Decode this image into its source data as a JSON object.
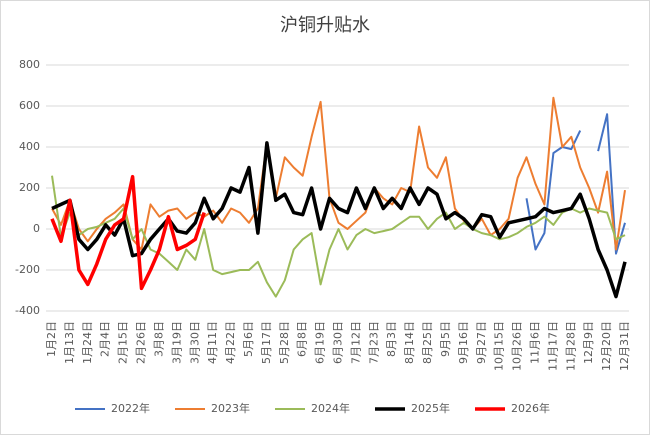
{
  "chart_data": {
    "type": "line",
    "title": "沪铜升贴水",
    "categories": [
      "1月2日",
      null,
      "1月13日",
      null,
      "1月24日",
      null,
      "2月4日",
      null,
      "2月15日",
      null,
      "2月26日",
      null,
      "3月8日",
      null,
      "3月19日",
      null,
      "3月30日",
      null,
      "4月11日",
      null,
      "4月22日",
      null,
      "5月6日",
      null,
      "5月17日",
      null,
      "5月28日",
      null,
      "6月8日",
      null,
      "6月19日",
      null,
      "6月30日",
      null,
      "7月12日",
      null,
      "7月23日",
      null,
      "8月3日",
      null,
      "8月14日",
      null,
      "8月25日",
      null,
      "9月5日",
      null,
      "9月16日",
      null,
      "9月27日",
      null,
      "10月15日",
      null,
      "10月26日",
      null,
      "11月6日",
      null,
      "11月17日",
      null,
      "11月28日",
      null,
      "12月9日",
      null,
      "12月20日",
      null,
      "12月31日"
    ],
    "series": [
      {
        "name": "2022年",
        "color": "#4472c4",
        "width": 2,
        "values": [
          null,
          null,
          null,
          null,
          null,
          null,
          null,
          null,
          null,
          null,
          null,
          null,
          null,
          null,
          null,
          null,
          null,
          null,
          null,
          null,
          null,
          null,
          null,
          null,
          null,
          null,
          null,
          null,
          null,
          null,
          null,
          null,
          null,
          null,
          null,
          null,
          null,
          null,
          null,
          null,
          null,
          null,
          null,
          null,
          null,
          null,
          null,
          null,
          null,
          null,
          null,
          null,
          null,
          150,
          -100,
          -20,
          370,
          400,
          390,
          480,
          null,
          380,
          560,
          -120,
          30
        ]
      },
      {
        "name": "2023年",
        "color": "#ed7d31",
        "width": 2,
        "values": [
          100,
          20,
          140,
          0,
          -60,
          0,
          50,
          80,
          120,
          -50,
          -100,
          120,
          60,
          90,
          100,
          50,
          80,
          60,
          90,
          30,
          100,
          80,
          30,
          100,
          420,
          150,
          350,
          300,
          260,
          450,
          620,
          150,
          30,
          0,
          40,
          80,
          200,
          150,
          120,
          200,
          180,
          500,
          300,
          250,
          350,
          100,
          40,
          0,
          50,
          -30,
          0,
          50,
          250,
          350,
          220,
          120,
          640,
          400,
          450,
          300,
          200,
          80,
          280,
          -100,
          190
        ]
      },
      {
        "name": "2024年",
        "color": "#9bbb59",
        "width": 2,
        "values": [
          260,
          -40,
          80,
          -30,
          0,
          10,
          30,
          50,
          100,
          -50,
          0,
          -100,
          -120,
          -160,
          -200,
          -100,
          -150,
          0,
          -200,
          -220,
          -210,
          -200,
          -200,
          -160,
          -260,
          -330,
          -250,
          -100,
          -50,
          -20,
          -270,
          -100,
          0,
          -100,
          -30,
          0,
          -20,
          -10,
          0,
          30,
          60,
          60,
          0,
          50,
          80,
          0,
          30,
          0,
          -20,
          -30,
          -50,
          -40,
          -20,
          10,
          30,
          60,
          20,
          80,
          100,
          80,
          100,
          90,
          80,
          -50,
          -30
        ]
      },
      {
        "name": "2025年",
        "color": "#000000",
        "width": 3.5,
        "values": [
          100,
          120,
          140,
          -50,
          -100,
          -50,
          20,
          -30,
          50,
          -130,
          -120,
          -50,
          0,
          50,
          -10,
          -20,
          30,
          150,
          50,
          100,
          200,
          180,
          300,
          -20,
          420,
          140,
          170,
          80,
          70,
          200,
          0,
          150,
          100,
          80,
          200,
          100,
          200,
          100,
          150,
          100,
          200,
          120,
          200,
          170,
          50,
          80,
          50,
          0,
          70,
          60,
          -40,
          30,
          40,
          50,
          60,
          100,
          80,
          90,
          100,
          170,
          50,
          -100,
          -200,
          -330,
          -160
        ]
      },
      {
        "name": "2026年",
        "color": "#ff0000",
        "width": 3.5,
        "values": [
          50,
          -60,
          140,
          -200,
          -270,
          -170,
          -50,
          20,
          50,
          255,
          -290,
          -200,
          -100,
          60,
          -100,
          -80,
          -50,
          80,
          null,
          null,
          null,
          null,
          null,
          null,
          null,
          null,
          null,
          null,
          null,
          null,
          null,
          null,
          null,
          null,
          null,
          null,
          null,
          null,
          null,
          null,
          null,
          null,
          null,
          null,
          null,
          null,
          null,
          null,
          null,
          null,
          null,
          null,
          null,
          null,
          null,
          null,
          null,
          null,
          null,
          null,
          null,
          null,
          null,
          null,
          null
        ]
      }
    ],
    "ylim": [
      -400,
      800
    ],
    "yticks": [
      -400,
      -200,
      0,
      200,
      400,
      600,
      800
    ],
    "grid": true,
    "legend": "bottom"
  }
}
